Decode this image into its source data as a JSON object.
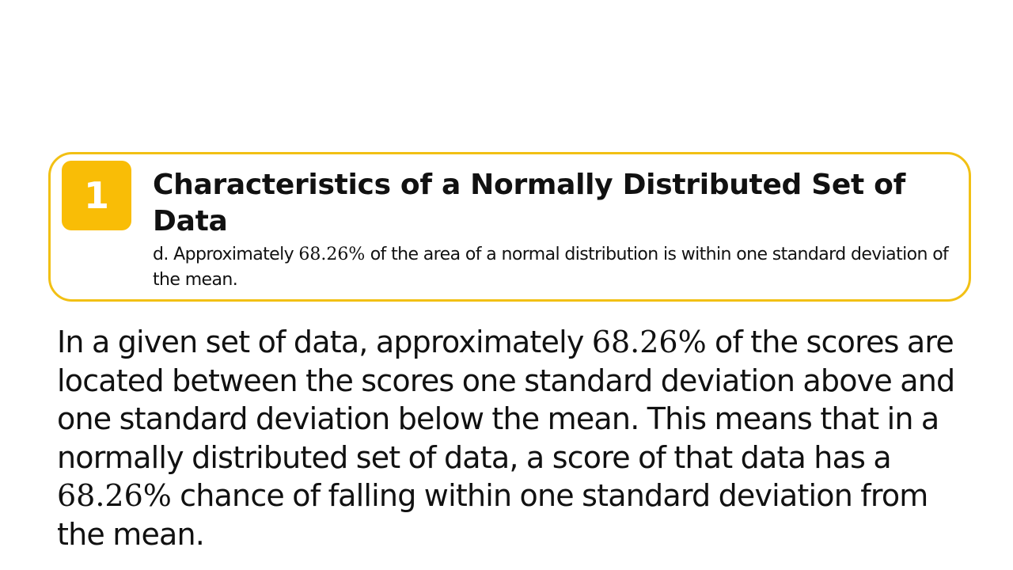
{
  "callout": {
    "badge_number": "1",
    "title": "Characteristics of a Normally Distributed Set of Data",
    "body_prefix": "d. Approximately ",
    "body_percent": "68.26%",
    "body_suffix": " of the area of a normal distribution is within one standard deviation of the mean."
  },
  "main": {
    "part1": "In a given set of data, approximately ",
    "percent1": "68.26%",
    "part2": " of the scores are located between the scores one standard deviation above and one standard deviation below the mean. This means that in a normally distributed set of data, a score of that data has a ",
    "percent2": "68.26%",
    "part3": " chance of falling within one standard deviation from the mean."
  },
  "colors": {
    "accent": "#F9BD06",
    "border": "#F2C014",
    "text": "#111111"
  }
}
